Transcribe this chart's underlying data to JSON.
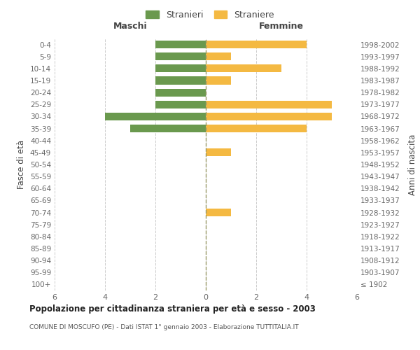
{
  "age_groups": [
    "100+",
    "95-99",
    "90-94",
    "85-89",
    "80-84",
    "75-79",
    "70-74",
    "65-69",
    "60-64",
    "55-59",
    "50-54",
    "45-49",
    "40-44",
    "35-39",
    "30-34",
    "25-29",
    "20-24",
    "15-19",
    "10-14",
    "5-9",
    "0-4"
  ],
  "birth_years": [
    "≤ 1902",
    "1903-1907",
    "1908-1912",
    "1913-1917",
    "1918-1922",
    "1923-1927",
    "1928-1932",
    "1933-1937",
    "1938-1942",
    "1943-1947",
    "1948-1952",
    "1953-1957",
    "1958-1962",
    "1963-1967",
    "1968-1972",
    "1973-1977",
    "1978-1982",
    "1983-1987",
    "1988-1992",
    "1993-1997",
    "1998-2002"
  ],
  "maschi": [
    0,
    0,
    0,
    0,
    0,
    0,
    0,
    0,
    0,
    0,
    0,
    0,
    0,
    3,
    4,
    2,
    2,
    2,
    2,
    2,
    2
  ],
  "femmine": [
    0,
    0,
    0,
    0,
    0,
    0,
    1,
    0,
    0,
    0,
    0,
    1,
    0,
    4,
    5,
    5,
    0,
    1,
    3,
    1,
    4
  ],
  "color_maschi": "#6a994e",
  "color_femmine": "#f4b942",
  "title": "Popolazione per cittadinanza straniera per età e sesso - 2003",
  "subtitle": "COMUNE DI MOSCUFO (PE) - Dati ISTAT 1° gennaio 2003 - Elaborazione TUTTITALIA.IT",
  "ylabel_left": "Fasce di età",
  "ylabel_right": "Anni di nascita",
  "xlabel_left": "Maschi",
  "xlabel_right": "Femmine",
  "legend_maschi": "Stranieri",
  "legend_femmine": "Straniere",
  "xlim": 6,
  "bg_color": "#ffffff",
  "grid_color": "#cccccc",
  "label_color": "#666666"
}
